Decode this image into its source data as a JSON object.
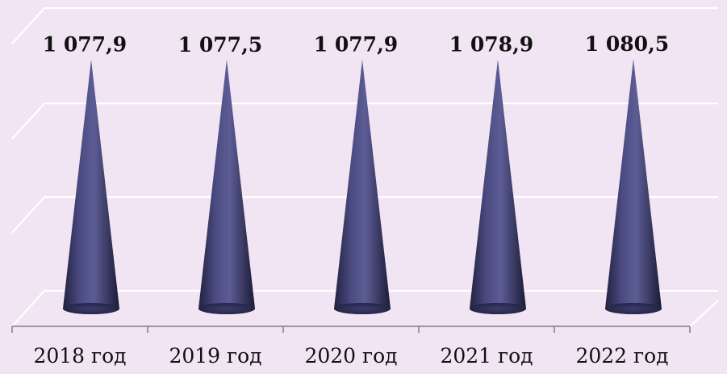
{
  "chart_data": {
    "type": "bar",
    "style": "3d-cone",
    "categories": [
      "2018 год",
      "2019 год",
      "2020 год",
      "2021 год",
      "2022 год"
    ],
    "values": [
      1077.9,
      1077.5,
      1077.9,
      1078.9,
      1080.5
    ],
    "data_labels": [
      "1 077,9",
      "1 077,5",
      "1 077,9",
      "1 078,9",
      "1 080,5"
    ],
    "title": "",
    "xlabel": "",
    "ylabel": "",
    "grid": true,
    "legend": "none"
  },
  "colors": {
    "background": "#f1e4f3",
    "cone": "#2f2f5c",
    "gridline": "#ffffff",
    "axis": "#7f7f7f",
    "text": "#111111"
  }
}
